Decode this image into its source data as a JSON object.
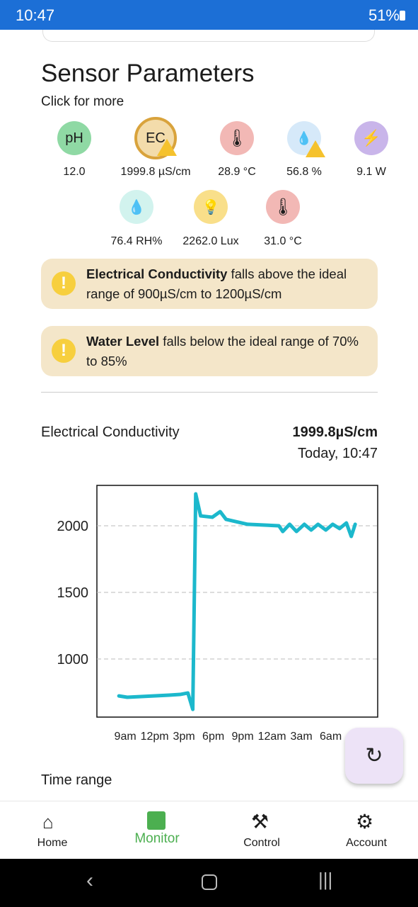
{
  "status_bar": {
    "time": "10:47",
    "battery": "51%"
  },
  "header": {
    "title": "Sensor Parameters",
    "subtitle": "Click for more"
  },
  "sensors": [
    {
      "icon": "pH",
      "value": "12.0"
    },
    {
      "icon": "EC",
      "value": "1999.8 µS/cm"
    },
    {
      "value": "28.9 °C"
    },
    {
      "value": "56.8 %"
    },
    {
      "value": "9.1 W"
    },
    {
      "value": "76.4 RH%"
    },
    {
      "value": "2262.0 Lux"
    },
    {
      "value": "31.0 °C"
    }
  ],
  "alerts": [
    {
      "bold": "Electrical Conductivity",
      "text": " falls above the ideal range of 900µS/cm to 1200µS/cm"
    },
    {
      "bold": "Water Level",
      "text": " falls below the ideal range of 70% to 85%"
    }
  ],
  "detail": {
    "name": "Electrical Conductivity",
    "value": "1999.8µS/cm",
    "time": "Today, 10:47"
  },
  "chart_data": {
    "type": "line",
    "color": "#1cb8cc",
    "grid": true,
    "xlim": [
      -2.9,
      25.8
    ],
    "xticks": [
      {
        "value": 0,
        "label": "9am"
      },
      {
        "value": 3,
        "label": "12pm"
      },
      {
        "value": 6,
        "label": "3pm"
      },
      {
        "value": 9,
        "label": "6pm"
      },
      {
        "value": 12,
        "label": "9pm"
      },
      {
        "value": 15,
        "label": "12am"
      },
      {
        "value": 18,
        "label": "3am"
      },
      {
        "value": 21,
        "label": "6am"
      }
    ],
    "ylim": [
      564,
      2303
    ],
    "yticks": [
      1000,
      1500,
      2000
    ],
    "x": [
      -0.65,
      0.2,
      4.5,
      5.6,
      6.4,
      6.9,
      7.2,
      7.7,
      8.9,
      9.7,
      10.3,
      12.5,
      15.7,
      16.1,
      16.8,
      17.5,
      18.3,
      19.0,
      19.7,
      20.5,
      21.2,
      21.9,
      22.6,
      23.1,
      23.5
    ],
    "series": [
      {
        "name": "Electrical Conductivity",
        "color": "#1cb8cc",
        "values": [
          723,
          713,
          729,
          734,
          745,
          622,
          2239,
          2074,
          2064,
          2106,
          2048,
          2011,
          2000,
          1957,
          2011,
          1957,
          2011,
          1968,
          2011,
          1968,
          2011,
          1979,
          2021,
          1920,
          2011
        ]
      }
    ]
  },
  "time_range_label": "Time range",
  "nav": [
    "Home",
    "Monitor",
    "Control",
    "Account"
  ]
}
